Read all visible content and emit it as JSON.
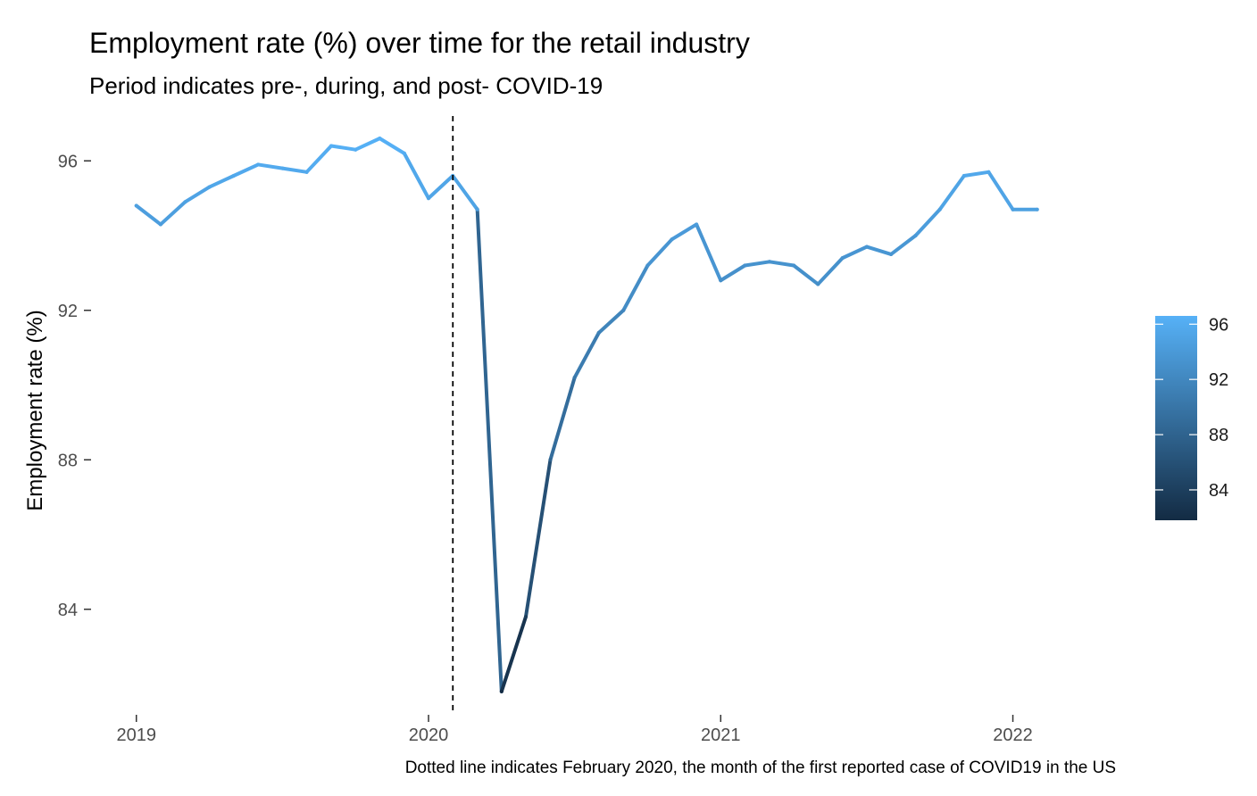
{
  "chart_data": {
    "type": "line",
    "title": "Employment rate (%) over time for the retail industry",
    "subtitle": "Period indicates pre-, during, and post- COVID-19",
    "xlabel": "",
    "ylabel": "Employment rate (%)",
    "caption": "Dotted line indicates February 2020, the month of the first reported case of COVID19 in the US",
    "x_ticks": [
      {
        "label": "2019",
        "value": 2019.0
      },
      {
        "label": "2020",
        "value": 2020.0
      },
      {
        "label": "2021",
        "value": 2021.0
      },
      {
        "label": "2022",
        "value": 2022.0
      }
    ],
    "y_ticks": [
      {
        "label": "84",
        "value": 84
      },
      {
        "label": "88",
        "value": 88
      },
      {
        "label": "92",
        "value": 92
      },
      {
        "label": "96",
        "value": 96
      }
    ],
    "xlim": [
      2018.9,
      2022.42
    ],
    "ylim": [
      81.2,
      97.2
    ],
    "reference_line": {
      "x": 2020.0833,
      "style": "dashed",
      "meaning": "February 2020"
    },
    "color_scale": {
      "low_color": "#132B43",
      "high_color": "#56B1F7",
      "range": [
        81.8,
        96.6
      ],
      "legend_ticks": [
        {
          "label": "84",
          "value": 84
        },
        {
          "label": "88",
          "value": 88
        },
        {
          "label": "92",
          "value": 92
        },
        {
          "label": "96",
          "value": 96
        }
      ]
    },
    "series": [
      {
        "name": "Employment rate",
        "points": [
          {
            "x": 2019.0,
            "y": 94.8
          },
          {
            "x": 2019.083,
            "y": 94.3
          },
          {
            "x": 2019.167,
            "y": 94.9
          },
          {
            "x": 2019.25,
            "y": 95.3
          },
          {
            "x": 2019.333,
            "y": 95.6
          },
          {
            "x": 2019.417,
            "y": 95.9
          },
          {
            "x": 2019.5,
            "y": 95.8
          },
          {
            "x": 2019.583,
            "y": 95.7
          },
          {
            "x": 2019.667,
            "y": 96.4
          },
          {
            "x": 2019.75,
            "y": 96.3
          },
          {
            "x": 2019.833,
            "y": 96.6
          },
          {
            "x": 2019.917,
            "y": 96.2
          },
          {
            "x": 2020.0,
            "y": 95.0
          },
          {
            "x": 2020.083,
            "y": 95.6
          },
          {
            "x": 2020.167,
            "y": 94.7
          },
          {
            "x": 2020.25,
            "y": 81.8
          },
          {
            "x": 2020.333,
            "y": 83.8
          },
          {
            "x": 2020.417,
            "y": 88.0
          },
          {
            "x": 2020.5,
            "y": 90.2
          },
          {
            "x": 2020.583,
            "y": 91.4
          },
          {
            "x": 2020.667,
            "y": 92.0
          },
          {
            "x": 2020.75,
            "y": 93.2
          },
          {
            "x": 2020.833,
            "y": 93.9
          },
          {
            "x": 2020.917,
            "y": 94.3
          },
          {
            "x": 2021.0,
            "y": 92.8
          },
          {
            "x": 2021.083,
            "y": 93.2
          },
          {
            "x": 2021.167,
            "y": 93.3
          },
          {
            "x": 2021.25,
            "y": 93.2
          },
          {
            "x": 2021.333,
            "y": 92.7
          },
          {
            "x": 2021.417,
            "y": 93.4
          },
          {
            "x": 2021.5,
            "y": 93.7
          },
          {
            "x": 2021.583,
            "y": 93.5
          },
          {
            "x": 2021.667,
            "y": 94.0
          },
          {
            "x": 2021.75,
            "y": 94.7
          },
          {
            "x": 2021.833,
            "y": 95.6
          },
          {
            "x": 2021.917,
            "y": 95.7
          },
          {
            "x": 2022.0,
            "y": 94.7
          },
          {
            "x": 2022.083,
            "y": 94.7
          }
        ]
      }
    ]
  }
}
